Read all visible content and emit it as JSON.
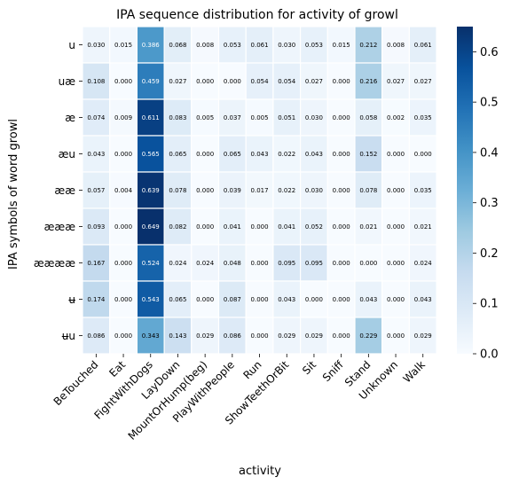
{
  "chart_data": {
    "type": "heatmap",
    "title": "IPA sequence distribution for activity of growl",
    "xlabel": "activity",
    "ylabel": "IPA symbols of word growl",
    "x_categories": [
      "BeTouched",
      "Eat",
      "FightWithDogs",
      "LayDown",
      "MountOrHump(beg)",
      "PlayWithPeople",
      "Run",
      "ShowTeethOrBit",
      "Sit",
      "Sniff",
      "Stand",
      "Unknown",
      "Walk"
    ],
    "y_categories": [
      "u",
      "uæ",
      "æ",
      "æu",
      "ææ",
      "æææ",
      "ææææ",
      "ʉ",
      "ʉu"
    ],
    "values": [
      [
        0.03,
        0.015,
        0.386,
        0.068,
        0.008,
        0.053,
        0.061,
        0.03,
        0.053,
        0.015,
        0.212,
        0.008,
        0.061
      ],
      [
        0.108,
        0.0,
        0.459,
        0.027,
        0.0,
        0.0,
        0.054,
        0.054,
        0.027,
        0.0,
        0.216,
        0.027,
        0.027
      ],
      [
        0.074,
        0.009,
        0.611,
        0.083,
        0.005,
        0.037,
        0.005,
        0.051,
        0.03,
        0.0,
        0.058,
        0.002,
        0.035
      ],
      [
        0.043,
        0.0,
        0.565,
        0.065,
        0.0,
        0.065,
        0.043,
        0.022,
        0.043,
        0.0,
        0.152,
        0.0,
        0.0
      ],
      [
        0.057,
        0.004,
        0.639,
        0.078,
        0.0,
        0.039,
        0.017,
        0.022,
        0.03,
        0.0,
        0.078,
        0.0,
        0.035
      ],
      [
        0.093,
        0.0,
        0.649,
        0.082,
        0.0,
        0.041,
        0.0,
        0.041,
        0.052,
        0.0,
        0.021,
        0.0,
        0.021
      ],
      [
        0.167,
        0.0,
        0.524,
        0.024,
        0.024,
        0.048,
        0.0,
        0.095,
        0.095,
        0.0,
        0.0,
        0.0,
        0.024
      ],
      [
        0.174,
        0.0,
        0.543,
        0.065,
        0.0,
        0.087,
        0.0,
        0.043,
        0.0,
        0.0,
        0.043,
        0.0,
        0.043
      ],
      [
        0.086,
        0.0,
        0.343,
        0.143,
        0.029,
        0.086,
        0.0,
        0.029,
        0.029,
        0.0,
        0.229,
        0.0,
        0.029
      ]
    ],
    "colorbar": {
      "min": 0.0,
      "max": 0.65,
      "ticks": [
        "0.0",
        "0.1",
        "0.2",
        "0.3",
        "0.4",
        "0.5",
        "0.6"
      ],
      "colormap": "Blues"
    },
    "cell_border_color": "#ffffff"
  }
}
